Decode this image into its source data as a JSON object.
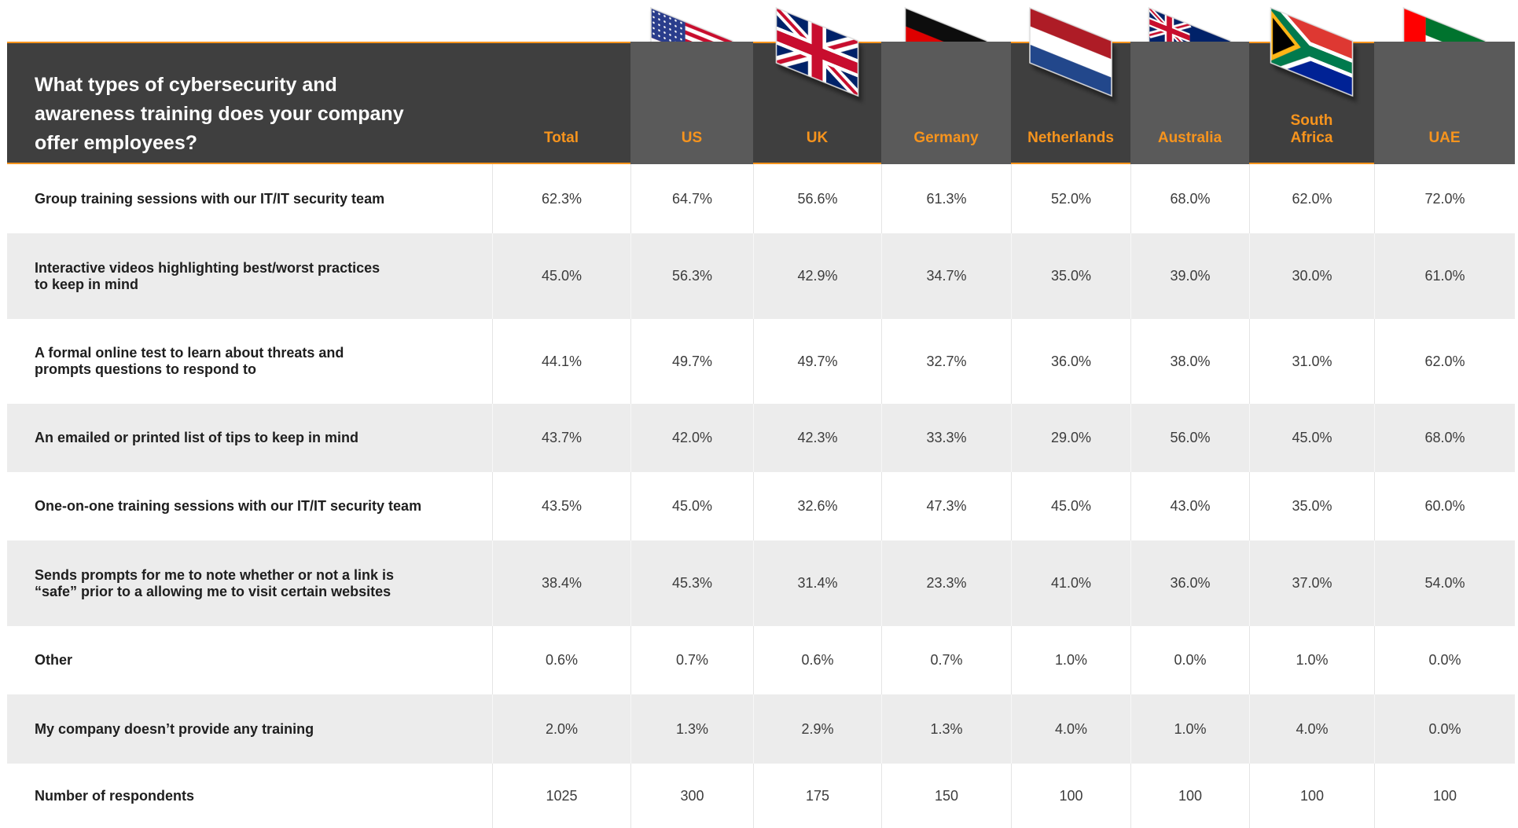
{
  "header": {
    "title": [
      "What types of cybersecurity and",
      "awareness training does your company",
      "offer employees?"
    ],
    "columns": [
      [
        "Total"
      ],
      [
        "US"
      ],
      [
        "UK"
      ],
      [
        "Germany"
      ],
      [
        "Netherlands"
      ],
      [
        "Australia"
      ],
      [
        "South",
        "Africa"
      ],
      [
        "UAE"
      ]
    ]
  },
  "table": {
    "rows": [
      {
        "label": [
          "Group training sessions with our IT/IT security team"
        ],
        "values": [
          "62.3%",
          "64.7%",
          "56.6%",
          "61.3%",
          "52.0%",
          "68.0%",
          "62.0%",
          "72.0%"
        ]
      },
      {
        "label": [
          "Interactive videos highlighting best/worst practices",
          "to keep in mind"
        ],
        "values": [
          "45.0%",
          "56.3%",
          "42.9%",
          "34.7%",
          "35.0%",
          "39.0%",
          "30.0%",
          "61.0%"
        ]
      },
      {
        "label": [
          "A formal online test to learn about threats and",
          "prompts questions to respond to"
        ],
        "values": [
          "44.1%",
          "49.7%",
          "49.7%",
          "32.7%",
          "36.0%",
          "38.0%",
          "31.0%",
          "62.0%"
        ]
      },
      {
        "label": [
          "An emailed or printed list of tips to keep in mind"
        ],
        "values": [
          "43.7%",
          "42.0%",
          "42.3%",
          "33.3%",
          "29.0%",
          "56.0%",
          "45.0%",
          "68.0%"
        ]
      },
      {
        "label": [
          "One-on-one training sessions with our IT/IT security team"
        ],
        "values": [
          "43.5%",
          "45.0%",
          "32.6%",
          "47.3%",
          "45.0%",
          "43.0%",
          "35.0%",
          "60.0%"
        ]
      },
      {
        "label": [
          "Sends prompts for me to note whether or not a link is",
          "“safe” prior to a allowing me to visit certain websites"
        ],
        "values": [
          "38.4%",
          "45.3%",
          "31.4%",
          "23.3%",
          "41.0%",
          "36.0%",
          "37.0%",
          "54.0%"
        ]
      },
      {
        "label": [
          "Other"
        ],
        "values": [
          "0.6%",
          "0.7%",
          "0.6%",
          "0.7%",
          "1.0%",
          "0.0%",
          "1.0%",
          "0.0%"
        ]
      },
      {
        "label": [
          "My company doesn’t provide any training"
        ],
        "values": [
          "2.0%",
          "1.3%",
          "2.9%",
          "1.3%",
          "4.0%",
          "1.0%",
          "4.0%",
          "0.0%"
        ]
      },
      {
        "label": [
          "Number of respondents"
        ],
        "values": [
          "1025",
          "300",
          "175",
          "150",
          "100",
          "100",
          "100",
          "100"
        ]
      }
    ]
  }
}
